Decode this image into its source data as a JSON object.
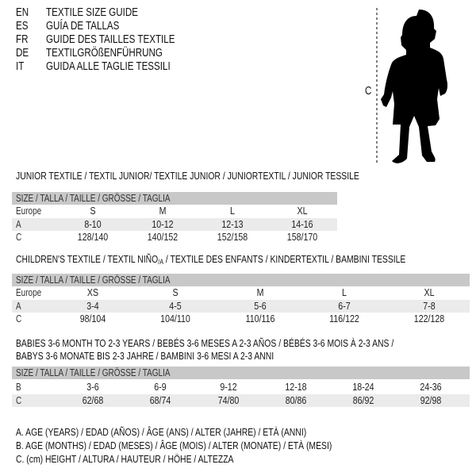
{
  "languages": [
    {
      "code": "EN",
      "title": "TEXTILE SIZE GUIDE"
    },
    {
      "code": "ES",
      "title": "GUÍA DE TALLAS"
    },
    {
      "code": "FR",
      "title": "GUIDE DES TAILLES TEXTILE"
    },
    {
      "code": "DE",
      "title": "TEXTILGRÖßENFÜHRUNG"
    },
    {
      "code": "IT",
      "title": "GUIDA ALLE TAGLIE TESSILI"
    }
  ],
  "figure": {
    "measure_label": "C"
  },
  "junior": {
    "title": "JUNIOR TEXTILE / TEXTIL JUNIOR/ TEXTILE JUNIOR / JUNIORTEXTIL / JUNIOR TESSILE",
    "header": "SIZE / TALLA / TAILLE / GRÖSSE / TAGLIA",
    "rows": [
      {
        "label": "Europe",
        "values": [
          "S",
          "M",
          "L",
          "XL"
        ]
      },
      {
        "label": "A",
        "values": [
          "8-10",
          "10-12",
          "12-13",
          "14-16"
        ]
      },
      {
        "label": "C",
        "values": [
          "128/140",
          "140/152",
          "152/158",
          "158/170"
        ]
      }
    ]
  },
  "children": {
    "title_pre": "CHILDREN'S TEXTILE / TEXTIL NIÑO",
    "title_sub": "/A",
    "title_post": " / TEXTILE DES ENFANTS / KINDERTEXTIL / BAMBINI TESSILE",
    "header": "SIZE / TALLA / TAILLE / GRÖSSE / TAGLIA",
    "rows": [
      {
        "label": "Europe",
        "values": [
          "XS",
          "S",
          "M",
          "L",
          "XL"
        ]
      },
      {
        "label": "A",
        "values": [
          "3-4",
          "4-5",
          "5-6",
          "6-7",
          "7-8"
        ]
      },
      {
        "label": "C",
        "values": [
          "98/104",
          "104/110",
          "110/116",
          "116/122",
          "122/128"
        ]
      }
    ]
  },
  "babies": {
    "title_line1": "BABIES 3-6 MONTH TO 2-3 YEARS / BEBÉS 3-6 MESES A 2-3 AÑOS / BÉBÉS 3-6 MOIS À 2-3 ANS /",
    "title_line2": "BABYS 3-6 MONATE BIS 2-3 JAHRE / BAMBINI 3-6 MESI A 2-3 ANNI",
    "header": "SIZE / TALLA / TAILLE / GRÖSSE / TAGLIA",
    "rows": [
      {
        "label": "B",
        "values": [
          "3-6",
          "6-9",
          "9-12",
          "12-18",
          "18-24",
          "24-36"
        ]
      },
      {
        "label": "C",
        "values": [
          "62/68",
          "68/74",
          "74/80",
          "80/86",
          "86/92",
          "92/98"
        ]
      }
    ]
  },
  "legend": [
    "A. AGE (YEARS) / EDAD (AÑOS) / ÂGE (ANS) / ALTER (JAHRE) / ETÀ (ANNI)",
    "B. AGE (MONTHS) / EDAD (MESES) / ÂGE (MOIS) / ALTER (MONATE) / ETÀ (MESI)",
    "C. (cm) HEIGHT / ALTURA / HAUTEUR / HÖHE / ALTEZZA"
  ]
}
